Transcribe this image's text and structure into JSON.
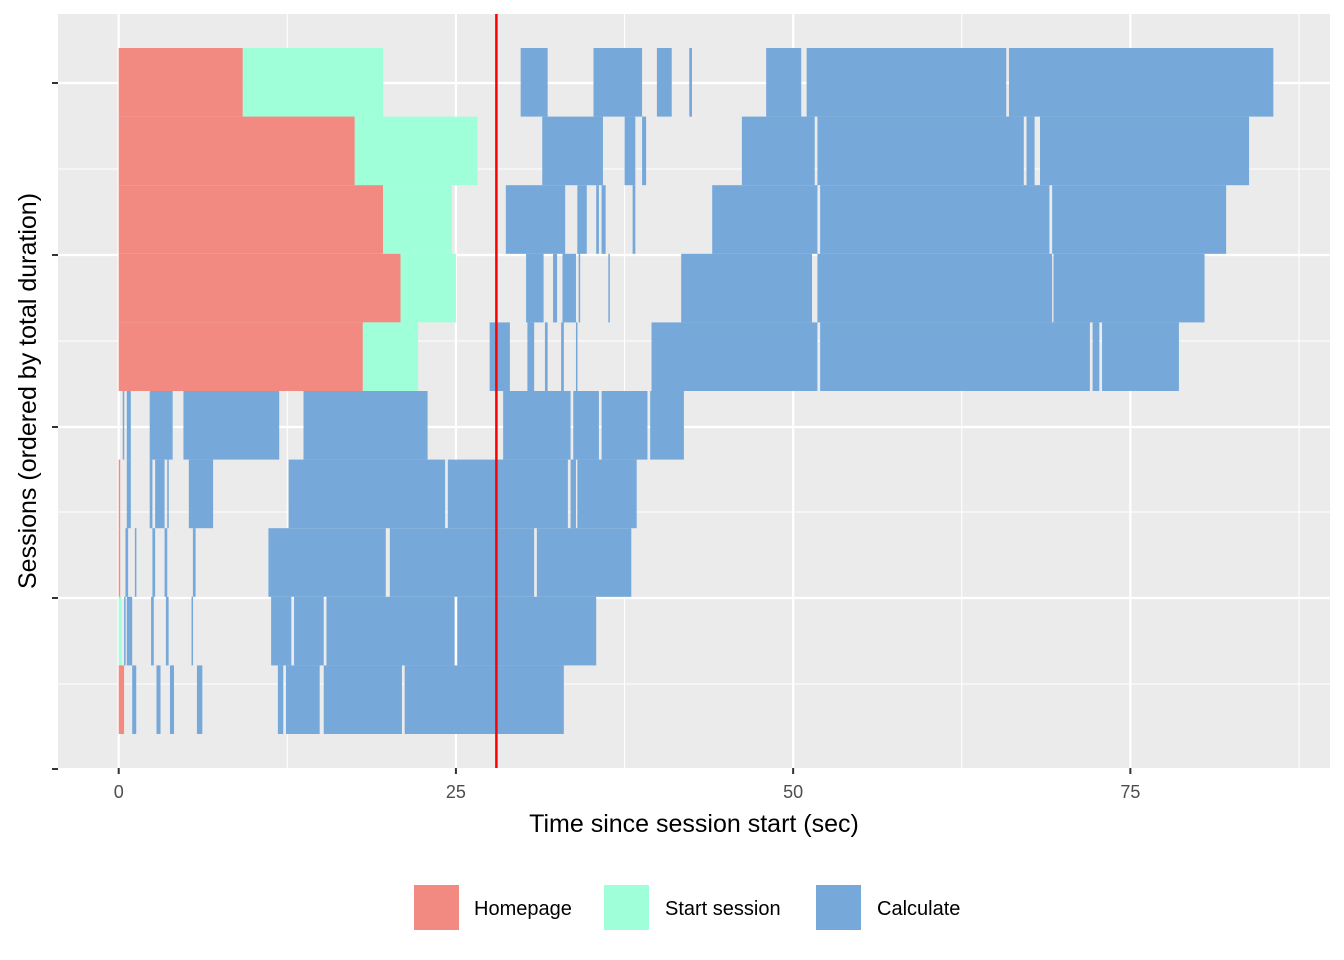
{
  "chart_data": {
    "type": "timeline",
    "title": "",
    "xlabel": "Time since session start (sec)",
    "ylabel": "Sessions (ordered by total duration)",
    "xlim": [
      -4.5,
      89.8
    ],
    "x_ticks": [
      0,
      25,
      50,
      75
    ],
    "y_tick_count": 5,
    "reference_line": {
      "x": 28,
      "color": "#ff0000"
    },
    "legend": {
      "position": "bottom",
      "entries": [
        {
          "key": "homepage",
          "label": "Homepage",
          "color": "#f28a81"
        },
        {
          "key": "start",
          "label": "Start session",
          "color": "#9effd9"
        },
        {
          "key": "calculate",
          "label": "Calculate",
          "color": "#76a9da"
        }
      ]
    },
    "sessions": [
      {
        "id": 1,
        "homepage": [
          [
            0,
            9.2
          ]
        ],
        "start": [
          [
            9.2,
            19.6
          ]
        ],
        "calculate": [
          [
            29.8,
            31.8
          ],
          [
            35.2,
            38.8
          ],
          [
            39.9,
            41.0
          ],
          [
            42.3,
            42.5
          ],
          [
            48.0,
            50.6
          ],
          [
            51.0,
            65.8
          ],
          [
            66.0,
            85.6
          ]
        ]
      },
      {
        "id": 2,
        "homepage": [
          [
            0,
            17.5
          ]
        ],
        "start": [
          [
            17.5,
            26.6
          ]
        ],
        "calculate": [
          [
            31.4,
            35.9
          ],
          [
            37.5,
            38.3
          ],
          [
            38.8,
            39.1
          ],
          [
            46.2,
            51.6
          ],
          [
            51.8,
            67.1
          ],
          [
            67.3,
            67.9
          ],
          [
            68.3,
            83.8
          ]
        ]
      },
      {
        "id": 3,
        "homepage": [
          [
            0,
            19.6
          ]
        ],
        "start": [
          [
            19.6,
            24.7
          ]
        ],
        "calculate": [
          [
            28.7,
            33.1
          ],
          [
            34.0,
            34.7
          ],
          [
            35.4,
            35.6
          ],
          [
            35.8,
            36.1
          ],
          [
            38.1,
            38.3
          ],
          [
            44.0,
            51.8
          ],
          [
            52.0,
            69.0
          ],
          [
            69.2,
            82.1
          ]
        ]
      },
      {
        "id": 4,
        "homepage": [
          [
            0,
            20.9
          ]
        ],
        "start": [
          [
            20.9,
            25.0
          ]
        ],
        "calculate": [
          [
            30.2,
            31.5
          ],
          [
            32.2,
            32.5
          ],
          [
            32.9,
            33.9
          ],
          [
            34.1,
            34.2
          ],
          [
            36.3,
            36.4
          ],
          [
            41.7,
            51.4
          ],
          [
            51.8,
            69.2
          ],
          [
            69.3,
            80.5
          ]
        ]
      },
      {
        "id": 5,
        "homepage": [
          [
            0,
            18.1
          ]
        ],
        "start": [
          [
            18.1,
            22.2
          ]
        ],
        "calculate": [
          [
            27.5,
            29.0
          ],
          [
            30.3,
            30.8
          ],
          [
            31.6,
            31.8
          ],
          [
            32.8,
            33.0
          ],
          [
            33.9,
            34.0
          ],
          [
            39.5,
            51.8
          ],
          [
            52.0,
            72.0
          ],
          [
            72.2,
            72.7
          ],
          [
            72.9,
            78.6
          ]
        ]
      },
      {
        "id": 6,
        "homepage": [],
        "start": [],
        "calculate": [
          [
            0.3,
            0.4
          ],
          [
            0.6,
            0.9
          ],
          [
            2.3,
            4.0
          ],
          [
            4.8,
            11.9
          ],
          [
            13.7,
            22.9
          ],
          [
            28.5,
            33.5
          ],
          [
            33.7,
            35.6
          ],
          [
            35.8,
            39.2
          ],
          [
            39.4,
            41.9
          ]
        ]
      },
      {
        "id": 7,
        "homepage": [
          [
            0,
            0.1
          ]
        ],
        "start": [],
        "calculate": [
          [
            0.6,
            0.9
          ],
          [
            2.3,
            2.5
          ],
          [
            2.7,
            3.4
          ],
          [
            3.6,
            3.7
          ],
          [
            5.2,
            7.0
          ],
          [
            12.6,
            24.2
          ],
          [
            24.4,
            33.3
          ],
          [
            33.5,
            33.9
          ],
          [
            34.0,
            38.4
          ]
        ]
      },
      {
        "id": 8,
        "homepage": [
          [
            0,
            0.1
          ]
        ],
        "start": [],
        "calculate": [
          [
            0.5,
            0.7
          ],
          [
            1.2,
            1.3
          ],
          [
            2.5,
            2.7
          ],
          [
            3.4,
            3.6
          ],
          [
            5.5,
            5.7
          ],
          [
            11.1,
            19.8
          ],
          [
            20.1,
            30.8
          ],
          [
            31.0,
            38.0
          ]
        ]
      },
      {
        "id": 9,
        "homepage": [],
        "start": [
          [
            0,
            0.2
          ]
        ],
        "calculate": [
          [
            0.4,
            0.5
          ],
          [
            0.6,
            1.0
          ],
          [
            2.4,
            2.6
          ],
          [
            3.5,
            3.7
          ],
          [
            5.4,
            5.5
          ],
          [
            11.3,
            12.8
          ],
          [
            13.0,
            15.2
          ],
          [
            15.4,
            24.9
          ],
          [
            25.1,
            35.4
          ]
        ]
      },
      {
        "id": 10,
        "homepage": [
          [
            0,
            0.4
          ]
        ],
        "start": [],
        "calculate": [
          [
            1.0,
            1.3
          ],
          [
            2.8,
            3.1
          ],
          [
            3.8,
            4.1
          ],
          [
            5.8,
            6.2
          ],
          [
            11.8,
            12.2
          ],
          [
            12.4,
            14.9
          ],
          [
            15.2,
            21.0
          ],
          [
            21.2,
            33.0
          ]
        ]
      }
    ]
  }
}
